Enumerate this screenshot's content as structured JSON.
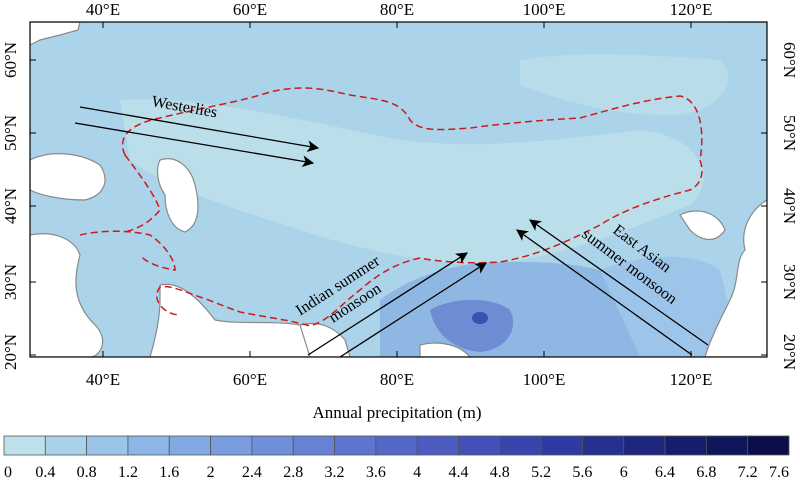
{
  "map": {
    "lon_ticks_top": [
      "40°E",
      "60°E",
      "80°E",
      "100°E",
      "120°E"
    ],
    "lon_ticks_bottom": [
      "40°E",
      "60°E",
      "80°E",
      "100°E",
      "120°E"
    ],
    "lat_ticks_left": [
      "60°N",
      "50°N",
      "40°N",
      "30°N",
      "20°N"
    ],
    "lat_ticks_right": [
      "60°N",
      "50°N",
      "40°N",
      "30°N",
      "20°N"
    ],
    "lon_range": [
      30,
      130
    ],
    "lat_range": [
      20,
      65
    ],
    "boundary_style": "red dashed line (study region)",
    "land_color": "#ffffff",
    "coast_color": "#8a8a8a"
  },
  "arrows": {
    "westerlies": "Westerlies",
    "indian_line1": "Indian summer",
    "indian_line2": "monsoon",
    "eastasian_line1": "East Asian",
    "eastasian_line2": "summer monsoon"
  },
  "colorbar": {
    "title": "Annual precipitation (m)",
    "ticks": [
      "0",
      "0.4",
      "0.8",
      "1.2",
      "1.6",
      "2",
      "2.4",
      "2.8",
      "3.2",
      "3.6",
      "4",
      "4.4",
      "4.8",
      "5.2",
      "5.6",
      "6",
      "6.4",
      "6.8",
      "7.2",
      "7.6"
    ],
    "colors": [
      "#bde0ea",
      "#a9d2ea",
      "#9bc4e9",
      "#8db6e6",
      "#83a9e2",
      "#799cde",
      "#708fd9",
      "#6782d4",
      "#5e75cf",
      "#5568c8",
      "#4c5cc0",
      "#4250b7",
      "#3845ad",
      "#2f3aa3",
      "#26308f",
      "#1e267d",
      "#161d6c",
      "#10165a",
      "#0a0f48"
    ]
  }
}
